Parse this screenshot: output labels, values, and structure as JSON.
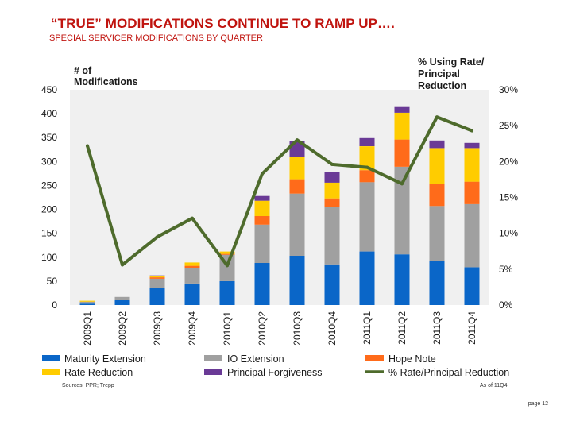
{
  "slide": {
    "title": "“TRUE” MODIFICATIONS CONTINUE TO RAMP UP….",
    "subtitle": "SPECIAL SERVICER MODIFICATIONS BY QUARTER",
    "sources": "Sources: PPR; Trepp",
    "as_of": "As of 11Q4",
    "page": "page 12"
  },
  "colors": {
    "Maturity Extension": "#0a66c8",
    "IO Extension": "#a0a0a0",
    "Hope Note": "#ff6b1a",
    "Rate Reduction": "#ffcc00",
    "Principal Forgiveness": "#6a3a96",
    "line": "#4e6b2c",
    "plot_bg": "#f0f0f0"
  },
  "chart_data": {
    "type": "bar",
    "stacked": true,
    "categories": [
      "2009Q1",
      "2009Q2",
      "2009Q3",
      "2009Q4",
      "2010Q1",
      "2010Q2",
      "2010Q3",
      "2010Q4",
      "2011Q1",
      "2011Q2",
      "2011Q3",
      "2011Q4"
    ],
    "series": [
      {
        "name": "Maturity Extension",
        "values": [
          3,
          10,
          35,
          45,
          50,
          88,
          103,
          85,
          112,
          106,
          92,
          79
        ]
      },
      {
        "name": "IO Extension",
        "values": [
          4,
          7,
          20,
          33,
          55,
          80,
          130,
          120,
          145,
          183,
          115,
          132
        ]
      },
      {
        "name": "Hope Note",
        "values": [
          0,
          0,
          3,
          4,
          2,
          18,
          30,
          18,
          25,
          57,
          46,
          47
        ]
      },
      {
        "name": "Rate Reduction",
        "values": [
          2,
          0,
          3,
          7,
          5,
          32,
          47,
          33,
          50,
          56,
          75,
          70
        ]
      },
      {
        "name": "Principal Forgiveness",
        "values": [
          0,
          0,
          1,
          0,
          0,
          10,
          33,
          23,
          17,
          12,
          16,
          11
        ]
      }
    ],
    "line_series": {
      "name": "% Rate/Principal Reduction",
      "axis": "right",
      "values": [
        22.2,
        5.6,
        9.5,
        12.1,
        5.5,
        18.3,
        23.0,
        19.6,
        19.2,
        16.9,
        26.2,
        24.3
      ]
    },
    "left_axis": {
      "title_line1": "# of",
      "title_line2": "Modifications",
      "ylim": [
        0,
        450
      ],
      "ticks": [
        "0",
        "50",
        "100",
        "150",
        "200",
        "250",
        "300",
        "350",
        "400",
        "450"
      ]
    },
    "right_axis": {
      "title_line1": "% Using Rate/",
      "title_line2": "Principal",
      "title_line3": "Reduction",
      "ylim": [
        0,
        30
      ],
      "ticks": [
        "0%",
        "5%",
        "10%",
        "15%",
        "20%",
        "25%",
        "30%"
      ]
    },
    "legend": [
      "Maturity Extension",
      "IO Extension",
      "Hope Note",
      "Rate Reduction",
      "Principal Forgiveness",
      "% Rate/Principal Reduction"
    ]
  }
}
